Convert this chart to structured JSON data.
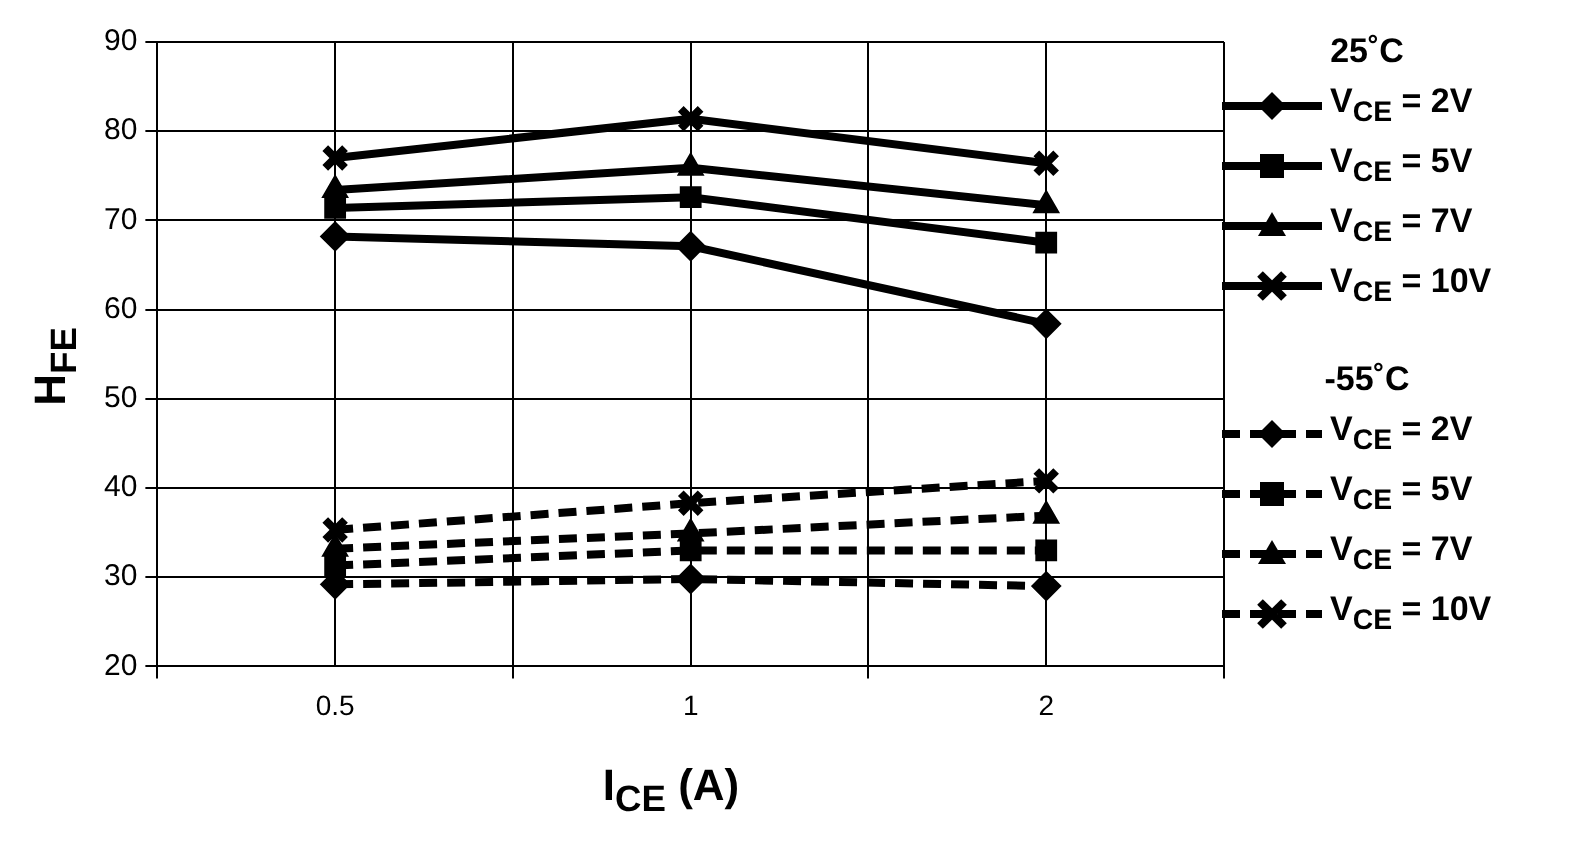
{
  "chart_data": {
    "type": "line",
    "xlabel": "I$_{CE}$ (A)",
    "ylabel": "H$_{FE}$",
    "categories": [
      "0.5",
      "1",
      "2"
    ],
    "ylim": [
      20,
      90
    ],
    "yticks": [
      20,
      30,
      40,
      50,
      60,
      70,
      80,
      90
    ],
    "grid": true,
    "legend": "right",
    "annotations": [
      "25˚C",
      "-55˚C"
    ],
    "series": [
      {
        "name": "V$_{CE}$ = 2V",
        "color": "#000000",
        "marker": "diamond",
        "line_style": "solid",
        "values": [
          68.2,
          67.1,
          58.4
        ]
      },
      {
        "name": "V$_{CE}$ = 5V",
        "color": "#000000",
        "marker": "square",
        "line_style": "solid",
        "values": [
          71.4,
          72.6,
          67.5
        ]
      },
      {
        "name": "V$_{CE}$ = 7V",
        "color": "#000000",
        "marker": "triangle",
        "line_style": "solid",
        "values": [
          73.4,
          75.9,
          71.7
        ]
      },
      {
        "name": "V$_{CE}$ = 10V",
        "color": "#000000",
        "marker": "cross",
        "line_style": "solid",
        "values": [
          77,
          81.4,
          76.4
        ]
      },
      {
        "name": "V$_{CE}$ = 2V",
        "color": "#000000",
        "marker": "diamond",
        "line_style": "dashed",
        "values": [
          29.2,
          29.8,
          29
        ]
      },
      {
        "name": "V$_{CE}$ = 5V",
        "color": "#000000",
        "marker": "square",
        "line_style": "dashed",
        "values": [
          31.3,
          33,
          33
        ]
      },
      {
        "name": "V$_{CE}$ = 7V",
        "color": "#000000",
        "marker": "triangle",
        "line_style": "dashed",
        "values": [
          33.2,
          34.9,
          36.9
        ]
      },
      {
        "name": "V$_{CE}$ = 10V",
        "color": "#000000",
        "marker": "cross",
        "line_style": "dashed",
        "values": [
          35.3,
          38.3,
          40.8
        ]
      }
    ]
  }
}
